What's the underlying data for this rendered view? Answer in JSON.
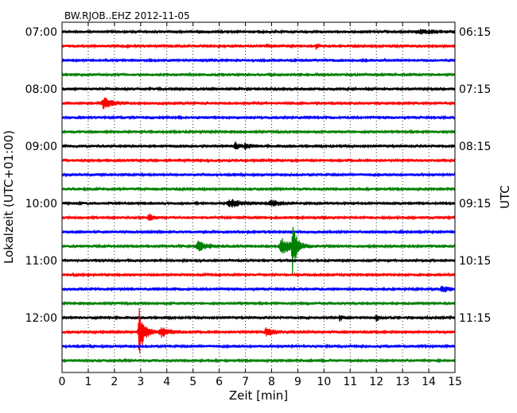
{
  "chart_data": {
    "type": "line",
    "title": "BW.RJOB..EHZ 2012-11-05",
    "xlabel": "Zeit  [min]",
    "ylabel_left": "Lokalzeit (UTC+01:00)",
    "ylabel_right": "UTC",
    "xlim": [
      0,
      15
    ],
    "x_ticks": [
      "0",
      "1",
      "2",
      "3",
      "4",
      "5",
      "6",
      "7",
      "8",
      "9",
      "10",
      "11",
      "12",
      "13",
      "14",
      "15"
    ],
    "left_tick_labels": [
      "07:00",
      "08:00",
      "09:00",
      "10:00",
      "11:00",
      "12:00"
    ],
    "right_tick_labels": [
      "06:15",
      "07:15",
      "08:15",
      "09:15",
      "10:15",
      "11:15"
    ],
    "grid": "vertical-dotted",
    "trace_colors": [
      "#000000",
      "#ff0000",
      "#0000ff",
      "#008000"
    ],
    "trace_count": 24,
    "noise_amplitude": 1.8,
    "events": [
      {
        "trace": 0,
        "minute": 13.7,
        "amplitude": 2.0,
        "width": 0.8
      },
      {
        "trace": 1,
        "minute": 9.7,
        "amplitude": 3.0,
        "width": 0.1
      },
      {
        "trace": 1,
        "minute": 7.8,
        "amplitude": 2.0,
        "width": 0.1
      },
      {
        "trace": 5,
        "minute": 1.6,
        "amplitude": 7.0,
        "width": 0.3
      },
      {
        "trace": 8,
        "minute": 6.6,
        "amplitude": 5.0,
        "width": 0.15
      },
      {
        "trace": 8,
        "minute": 7.0,
        "amplitude": 4.0,
        "width": 0.15
      },
      {
        "trace": 12,
        "minute": 6.4,
        "amplitude": 5.0,
        "width": 0.4
      },
      {
        "trace": 12,
        "minute": 8.0,
        "amplitude": 3.0,
        "width": 0.4
      },
      {
        "trace": 13,
        "minute": 3.3,
        "amplitude": 5.0,
        "width": 0.15
      },
      {
        "trace": 15,
        "minute": 5.2,
        "amplitude": 6.0,
        "width": 0.3
      },
      {
        "trace": 15,
        "minute": 8.8,
        "amplitude": 36.0,
        "width": 0.12
      },
      {
        "trace": 15,
        "minute": 8.4,
        "amplitude": 9.0,
        "width": 0.4
      },
      {
        "trace": 18,
        "minute": 14.5,
        "amplitude": 5.0,
        "width": 0.2
      },
      {
        "trace": 20,
        "minute": 10.6,
        "amplitude": 4.0,
        "width": 0.1
      },
      {
        "trace": 20,
        "minute": 12.0,
        "amplitude": 4.0,
        "width": 0.1
      },
      {
        "trace": 21,
        "minute": 2.95,
        "amplitude": 30.0,
        "width": 0.18
      },
      {
        "trace": 21,
        "minute": 3.8,
        "amplitude": 6.0,
        "width": 0.3
      },
      {
        "trace": 21,
        "minute": 7.8,
        "amplitude": 5.0,
        "width": 0.25
      }
    ]
  }
}
